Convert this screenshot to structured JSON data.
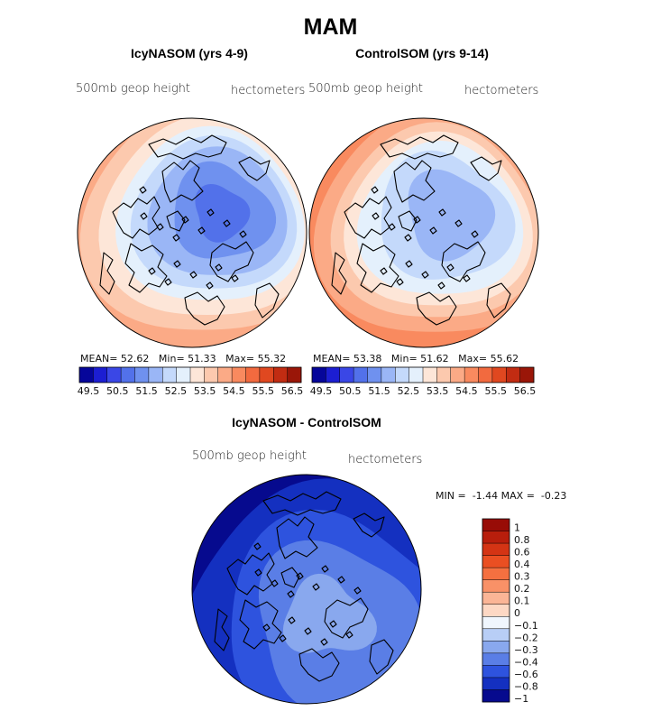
{
  "figure": {
    "title": "MAM"
  },
  "chart_data": [
    {
      "type": "heatmap",
      "subtitle": "IcyNASOM (yrs 4-9)",
      "variable_label": "500mb geop height",
      "units_label": "hectometers",
      "stats": {
        "mean_label": "MEAN=",
        "mean": "52.62",
        "min_label": "Min=",
        "min": "51.33",
        "max_label": "Max=",
        "max": "55.32"
      },
      "colorbar": {
        "levels": [
          49.5,
          49.75,
          50,
          50.25,
          50.5,
          50.75,
          51,
          51.25,
          51.5,
          51.75,
          52,
          52.25,
          52.5,
          52.75,
          53,
          53.25,
          53.5,
          53.75,
          54,
          54.25,
          54.5,
          54.75,
          55,
          55.25,
          55.5,
          55.75,
          56,
          56.25,
          56.5
        ],
        "tick_labels": [
          "49.5",
          "50.5",
          "51.5",
          "52.5",
          "53.5",
          "54.5",
          "55.5",
          "56.5"
        ],
        "colors": [
          "#06069a",
          "#1c1ed2",
          "#3a47e6",
          "#5271ea",
          "#6f91ef",
          "#9ab6f6",
          "#c4d9fb",
          "#e4f0fc",
          "#fde6d8",
          "#fcc9ae",
          "#fbaa86",
          "#f98a5f",
          "#f26a3f",
          "#e04820",
          "#c22c12",
          "#9a1608"
        ],
        "range": [
          49.5,
          56.5
        ]
      }
    },
    {
      "type": "heatmap",
      "subtitle": "ControlSOM (yrs 9-14)",
      "variable_label": "500mb geop height",
      "units_label": "hectometers",
      "stats": {
        "mean_label": "MEAN=",
        "mean": "53.38",
        "min_label": "Min=",
        "min": "51.62",
        "max_label": "Max=",
        "max": "55.62"
      },
      "colorbar": {
        "tick_labels": [
          "49.5",
          "50.5",
          "51.5",
          "52.5",
          "53.5",
          "54.5",
          "55.5",
          "56.5"
        ],
        "range": [
          49.5,
          56.5
        ]
      }
    },
    {
      "type": "heatmap",
      "subtitle": "IcyNASOM - ControlSOM",
      "variable_label": "500mb geop height",
      "units_label": "hectometers",
      "stats": {
        "min_label": "MIN =",
        "min": "-1.44",
        "max_label": "MAX =",
        "max": "-0.23"
      },
      "colorbar": {
        "orientation": "vertical",
        "tick_labels": [
          "1",
          "0.8",
          "0.6",
          "0.4",
          "0.3",
          "0.2",
          "0.1",
          "0",
          "−0.1",
          "−0.2",
          "−0.3",
          "−0.4",
          "−0.6",
          "−0.8",
          "−1"
        ],
        "colors_top_to_bottom": [
          "#980c06",
          "#b81e0c",
          "#d43414",
          "#ea4f22",
          "#f57040",
          "#f99167",
          "#fbb596",
          "#fdd8c4",
          "#f0f6fd",
          "#b8cef6",
          "#89a8ee",
          "#5a7ee6",
          "#2e53de",
          "#1430c0",
          "#060a8e"
        ]
      }
    }
  ]
}
